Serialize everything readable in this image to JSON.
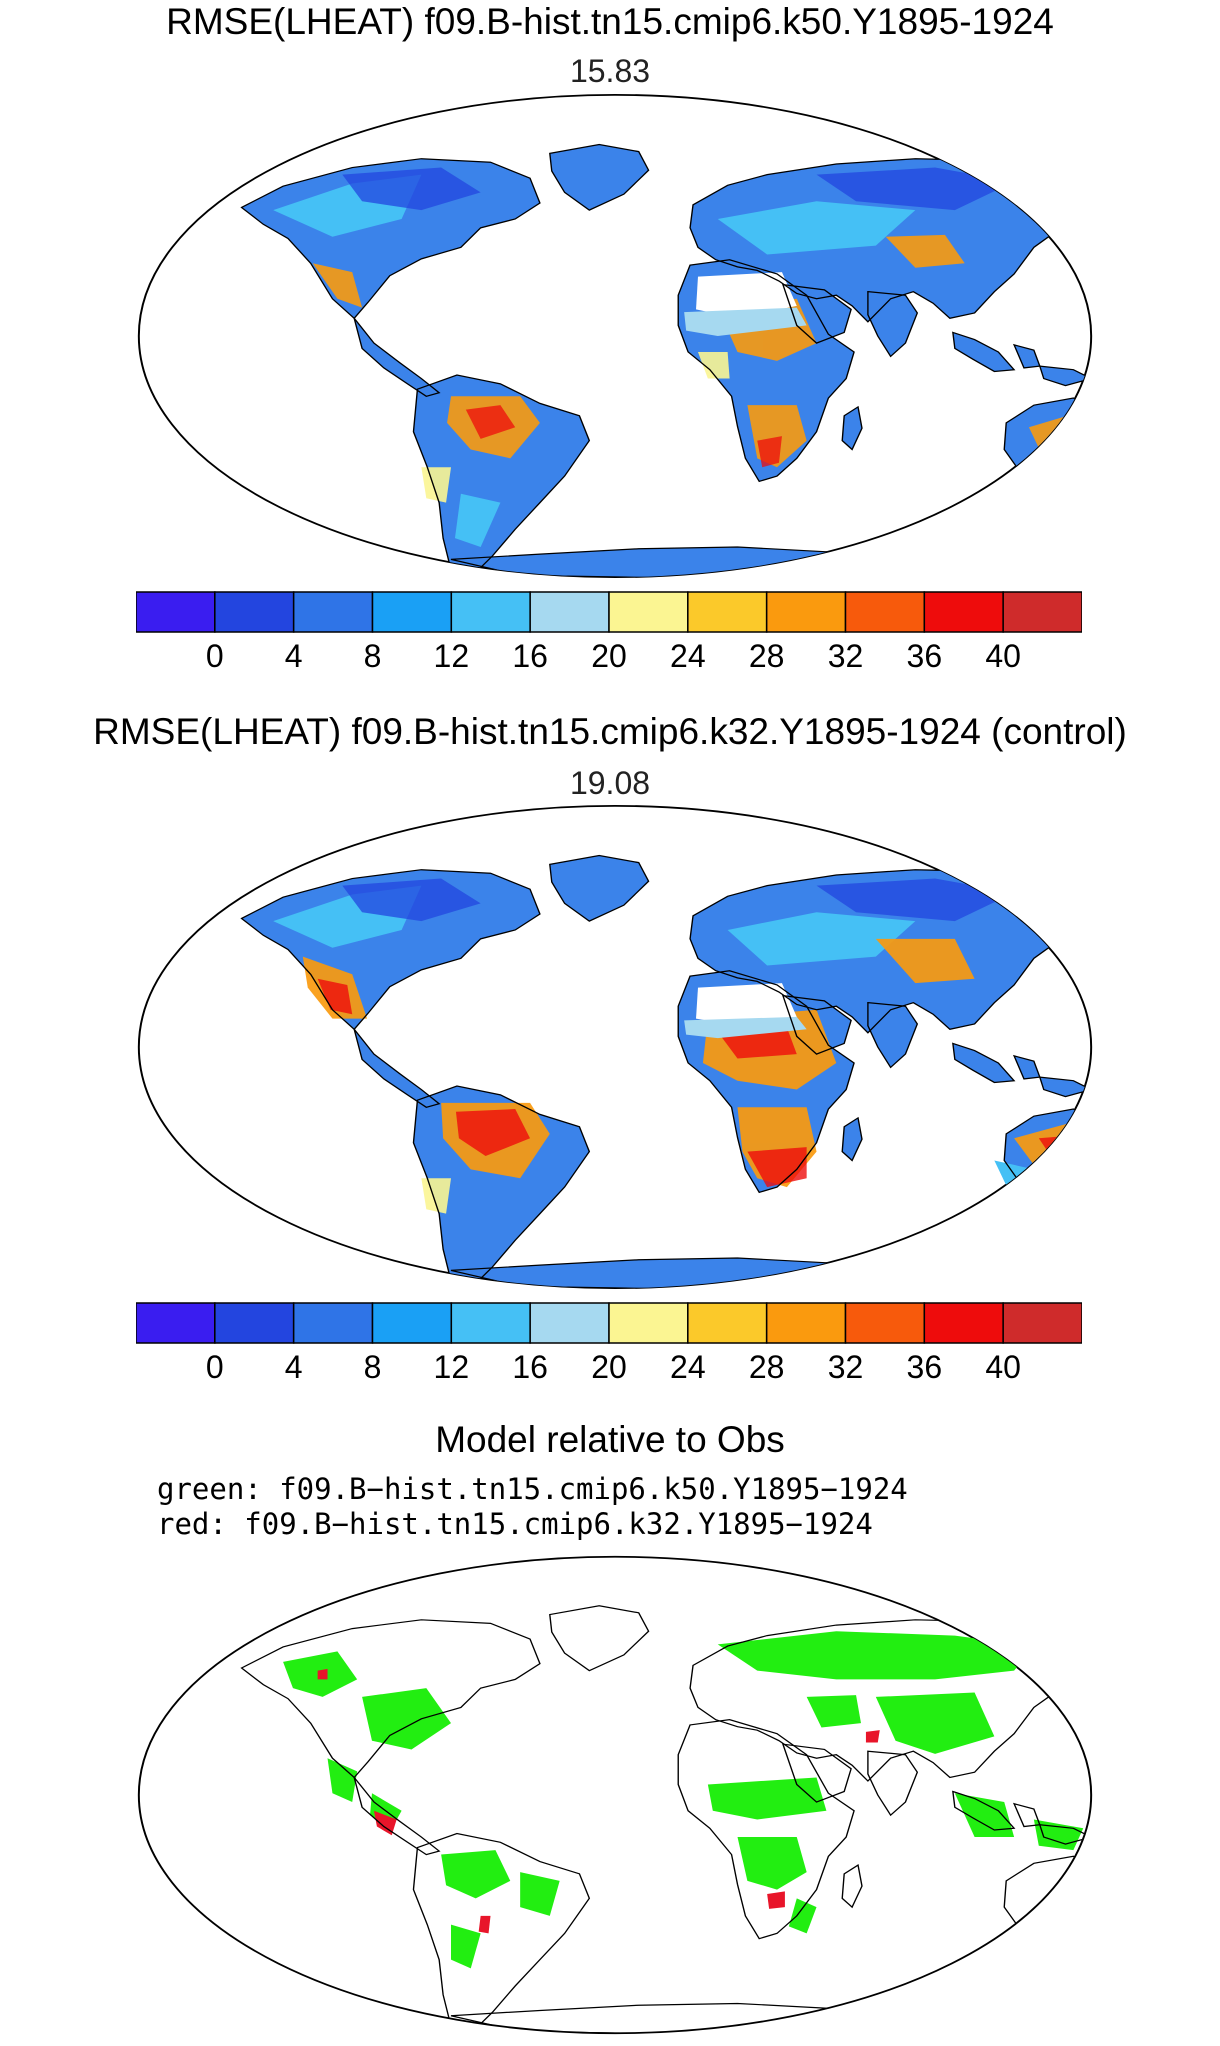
{
  "panels": [
    {
      "title": "RMSE(LHEAT) f09.B-hist.tn15.cmip6.k50.Y1895-1924",
      "score": "15.83"
    },
    {
      "title": "RMSE(LHEAT) f09.B-hist.tn15.cmip6.k32.Y1895-1924 (control)",
      "score": "19.08"
    }
  ],
  "colorbar": {
    "colors": [
      "#3a1df0",
      "#2345df",
      "#2f74e7",
      "#1aa0f5",
      "#45c0f5",
      "#a6d9f0",
      "#fbf592",
      "#fbc92a",
      "#fa9a0e",
      "#f75a0c",
      "#ee0c0c",
      "#cf2b2b"
    ],
    "labels": [
      "0",
      "4",
      "8",
      "12",
      "16",
      "20",
      "24",
      "28",
      "32",
      "36",
      "40"
    ]
  },
  "comparison": {
    "title": "Model relative to Obs",
    "line1": "green: f09.B−hist.tn15.cmip6.k50.Y1895−1924",
    "line2": "red: f09.B−hist.tn15.cmip6.k32.Y1895−1924",
    "colors": {
      "green": "#22ee11",
      "red": "#e8152a"
    }
  }
}
